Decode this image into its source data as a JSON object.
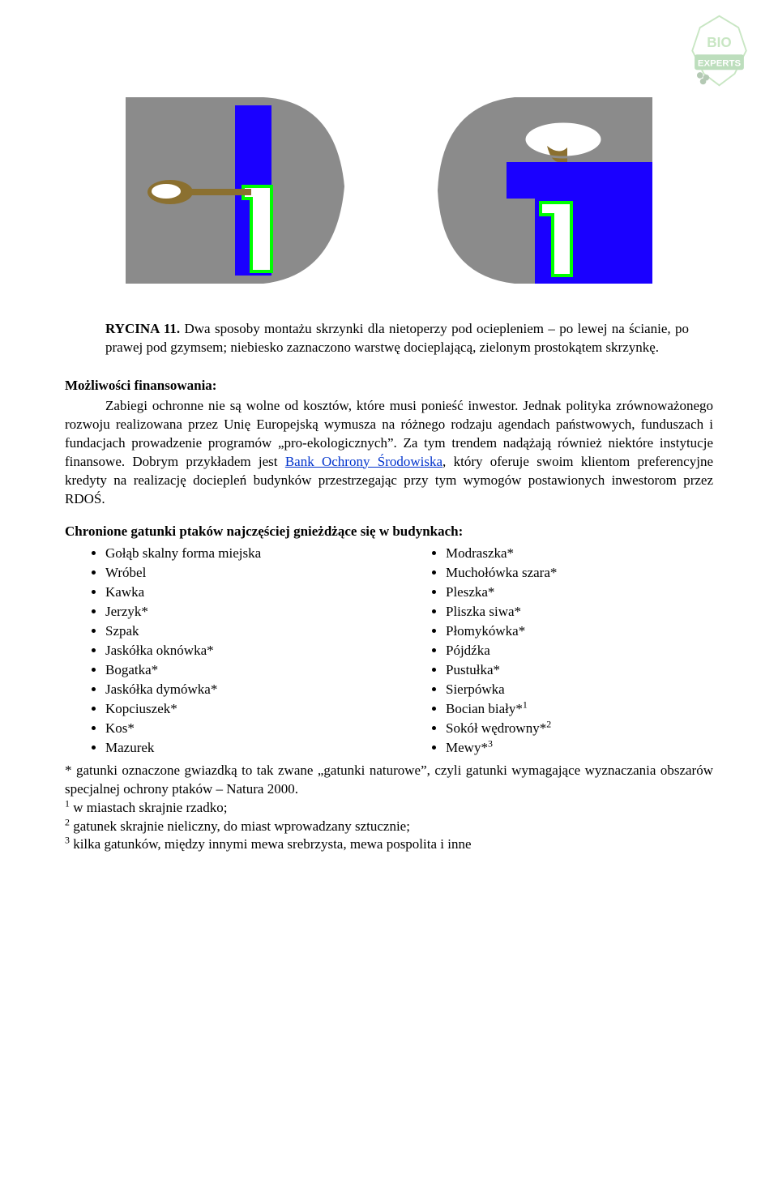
{
  "logo": {
    "text_top": "BIO",
    "text_bottom": "EXPERTS",
    "outline": "#87c87c",
    "band": "#6fb86f",
    "text_color": "#ffffff"
  },
  "diagrams": {
    "bg": "#ffffff",
    "wall_gray": "#8b8b8b",
    "insulation_blue": "#1a00ff",
    "box_outline": "#00ff00",
    "white": "#ffffff",
    "wood": "#8b7030",
    "dark": "#4a4a4a"
  },
  "caption": {
    "label": "RYCINA 11.",
    "text": " Dwa sposoby montażu skrzynki dla nietoperzy pod ociepleniem – po lewej na ścianie, po prawej pod gzymsem; niebiesko zaznaczono warstwę docieplającą, zielonym prostokątem skrzynkę."
  },
  "financing": {
    "heading": "Możliwości finansowania:",
    "body_before_link": "Zabiegi ochronne nie są wolne od kosztów, które musi ponieść inwestor. Jednak polityka zrównoważonego rozwoju realizowana przez Unię Europejską wymusza na różnego rodzaju agendach państwowych, funduszach i fundacjach prowadzenie programów „pro-ekologicznych”. Za tym trendem nadążają również niektóre instytucje finansowe. Dobrym przykładem jest ",
    "link_text": "Bank Ochrony Środowiska",
    "body_after_link": ", który oferuje swoim klientom preferencyjne kredyty na realizację dociepleń budynków przestrzegając przy tym wymogów postawionych inwestorom przez RDOŚ."
  },
  "species": {
    "heading": "Chronione gatunki ptaków najczęściej gnieżdżące się w budynkach:",
    "left": [
      "Gołąb skalny forma miejska",
      "Wróbel",
      "Kawka",
      "Jerzyk*",
      "Szpak",
      "Jaskółka oknówka*",
      "Bogatka*",
      "Jaskółka dymówka*",
      "Kopciuszek*",
      "Kos*",
      "Mazurek"
    ],
    "right": [
      {
        "t": "Modraszka*",
        "s": ""
      },
      {
        "t": "Muchołówka szara*",
        "s": ""
      },
      {
        "t": "Pleszka*",
        "s": ""
      },
      {
        "t": "Pliszka siwa*",
        "s": ""
      },
      {
        "t": "Płomykówka*",
        "s": ""
      },
      {
        "t": "Pójdźka",
        "s": ""
      },
      {
        "t": "Pustułka*",
        "s": ""
      },
      {
        "t": "Sierpówka",
        "s": ""
      },
      {
        "t": "Bocian biały*",
        "s": "1"
      },
      {
        "t": "Sokół wędrowny*",
        "s": "2"
      },
      {
        "t": "Mewy*",
        "s": "3"
      }
    ]
  },
  "footnotes": {
    "asterisk": "* gatunki oznaczone gwiazdką to tak zwane „gatunki naturowe”, czyli gatunki wymagające wyznaczania obszarów specjalnej ochrony ptaków – Natura 2000.",
    "n1": " w miastach skrajnie rzadko;",
    "n2": " gatunek skrajnie nieliczny, do miast wprowadzany sztucznie;",
    "n3": " kilka gatunków, między innymi mewa srebrzysta, mewa pospolita i inne"
  }
}
